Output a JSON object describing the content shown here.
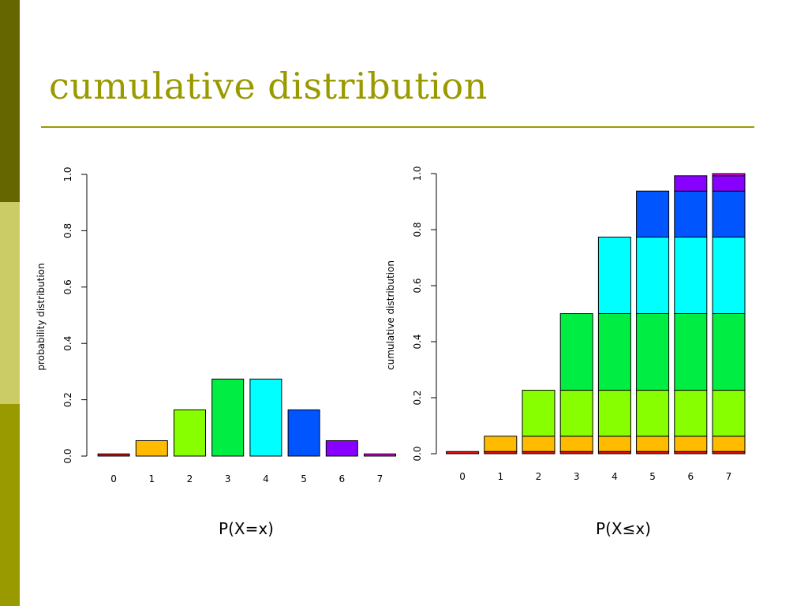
{
  "slide": {
    "title": "cumulative distribution"
  },
  "colors": {
    "accent": "#999900",
    "side_dark": "#666600",
    "side_light": "#cccc66",
    "categories": [
      "#dd1111",
      "#ffbb00",
      "#88ff00",
      "#00ee44",
      "#00ffff",
      "#0055ff",
      "#8800ff",
      "#dd00dd"
    ]
  },
  "chart_data": [
    {
      "type": "bar",
      "caption": "P(X=x)",
      "categories": [
        "0",
        "1",
        "2",
        "3",
        "4",
        "5",
        "6",
        "7"
      ],
      "values": [
        0.0078,
        0.0547,
        0.1641,
        0.2734,
        0.2734,
        0.1641,
        0.0547,
        0.0078
      ],
      "ylabel": "probability distribution",
      "xlabel": "",
      "ylim": [
        0,
        1
      ],
      "yticks": [
        "0.0",
        "0.2",
        "0.4",
        "0.6",
        "0.8",
        "1.0"
      ],
      "grid": false
    },
    {
      "type": "bar",
      "stacked": true,
      "caption": "P(X≤x)",
      "categories": [
        "0",
        "1",
        "2",
        "3",
        "4",
        "5",
        "6",
        "7"
      ],
      "segments": [
        0.0078,
        0.0547,
        0.1641,
        0.2734,
        0.2734,
        0.1641,
        0.0547,
        0.0078
      ],
      "values": [
        0.0078,
        0.0625,
        0.2266,
        0.5,
        0.7734,
        0.9375,
        0.9922,
        1.0
      ],
      "ylabel": "cumulative distribution",
      "xlabel": "",
      "ylim": [
        0,
        1
      ],
      "yticks": [
        "0.0",
        "0.2",
        "0.4",
        "0.6",
        "0.8",
        "1.0"
      ],
      "grid": false
    }
  ]
}
